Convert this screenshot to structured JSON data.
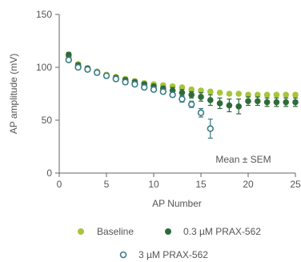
{
  "chart_data": {
    "type": "scatter",
    "title": "",
    "xlabel": "AP Number",
    "ylabel": "AP amplitude (mV)",
    "xlim": [
      0,
      25
    ],
    "ylim": [
      0,
      150
    ],
    "x_ticks": [
      0,
      5,
      10,
      15,
      20,
      25
    ],
    "y_ticks": [
      0,
      50,
      100,
      150
    ],
    "x_tick_labels": [
      "0",
      "5",
      "10",
      "15",
      "20",
      "25"
    ],
    "y_tick_labels": [
      "0",
      "50",
      "100",
      "150"
    ],
    "grid": false,
    "legend_position": "bottom",
    "annotation": "Mean ± SEM",
    "series": [
      {
        "name": "Baseline",
        "color": "#a8c43a",
        "marker": "filled-circle",
        "x": [
          1,
          2,
          3,
          4,
          5,
          6,
          7,
          8,
          9,
          10,
          11,
          12,
          13,
          14,
          15,
          16,
          17,
          18,
          19,
          20,
          21,
          22,
          23,
          24,
          25
        ],
        "y": [
          110,
          103,
          99,
          96,
          93,
          91,
          89,
          87,
          85,
          84,
          83,
          82,
          81,
          79,
          78,
          77,
          76,
          75,
          75,
          74,
          74,
          74,
          74,
          74,
          74
        ],
        "err": [
          2,
          1.5,
          1.5,
          1.5,
          1.5,
          1.5,
          1.5,
          1.5,
          1.5,
          1.5,
          1.5,
          1.5,
          1.5,
          1.5,
          1.5,
          1.5,
          1.5,
          1.5,
          1.5,
          1.5,
          1.5,
          1.5,
          1.5,
          1.5,
          1.5
        ]
      },
      {
        "name": "0.3 µM PRAX-562",
        "color": "#2f6b3a",
        "marker": "filled-circle",
        "x": [
          1,
          2,
          3,
          4,
          5,
          6,
          7,
          8,
          9,
          10,
          11,
          12,
          13,
          14,
          15,
          16,
          17,
          18,
          19,
          20,
          21,
          22,
          23,
          24,
          25
        ],
        "y": [
          112,
          102,
          99,
          95,
          92,
          90,
          88,
          86,
          84,
          82,
          80,
          78,
          76,
          74,
          72,
          69,
          66,
          64,
          63,
          68,
          68,
          67,
          67,
          67,
          67
        ],
        "err": [
          2,
          2,
          2,
          2,
          2,
          2,
          2,
          2,
          2,
          2,
          2,
          3,
          3,
          3,
          4,
          5,
          5,
          6,
          7,
          4,
          4,
          4,
          4,
          4,
          4
        ]
      },
      {
        "name": "3 µM PRAX-562",
        "color": "#3a7c86",
        "marker": "open-circle",
        "x": [
          1,
          2,
          3,
          4,
          5,
          6,
          7,
          8,
          9,
          10,
          11,
          12,
          13,
          14,
          15,
          16,
          17,
          18,
          19,
          20,
          21,
          22,
          23,
          24,
          25
        ],
        "y": [
          107,
          100,
          98,
          95,
          92,
          89,
          86,
          84,
          81,
          79,
          77,
          74,
          70,
          65,
          57,
          42,
          62,
          65,
          66,
          66,
          66,
          66,
          66,
          66,
          66
        ],
        "err": [
          2,
          2,
          2,
          2,
          2,
          2,
          2,
          2,
          2,
          2,
          2,
          2,
          3,
          3,
          4,
          9,
          3,
          3,
          3,
          3,
          3,
          3,
          3,
          3,
          3
        ],
        "visible_points": 16
      }
    ]
  }
}
